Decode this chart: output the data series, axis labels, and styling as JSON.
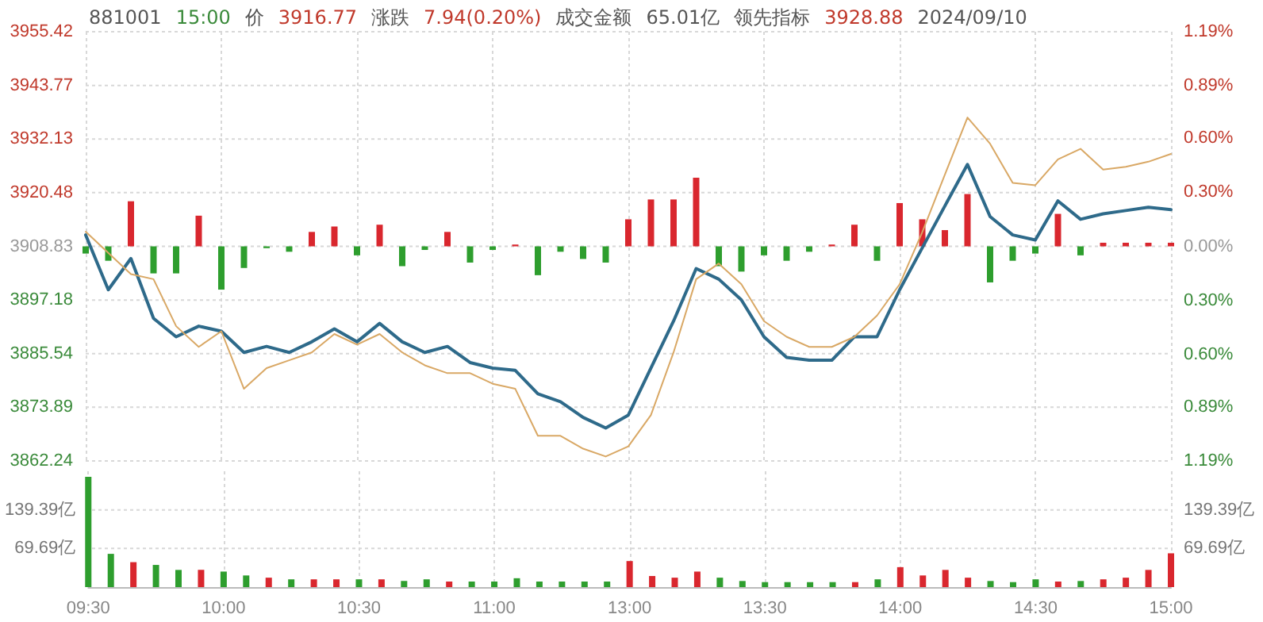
{
  "chart_data": [
    {
      "type": "line",
      "title": "881001",
      "annotations": [
        "15:00",
        "价",
        "3916.77",
        "涨跌",
        "7.94(0.20%)",
        "成交金额",
        "65.01亿",
        "领先指标",
        "3928.88",
        "2024/09/10"
      ],
      "categories": [
        null,
        null,
        null,
        null,
        null,
        null,
        null,
        null,
        null,
        null,
        null,
        null,
        null,
        null,
        null,
        null,
        null,
        null,
        null,
        null,
        null,
        null,
        null,
        null,
        null,
        null,
        null,
        null,
        null,
        null,
        null,
        null,
        null,
        null,
        null,
        null,
        null,
        null,
        null,
        null,
        null,
        null,
        null,
        null,
        null,
        null,
        null,
        null,
        null
      ],
      "series": [
        {
          "color": "#2e6a8a",
          "values": [
            3911.3,
            3899.4,
            3906.2,
            3893.2,
            3889.2,
            3891.5,
            3890.4,
            3885.8,
            3887.1,
            3885.8,
            3888.1,
            3890.9,
            3888.1,
            3892.1,
            3888.1,
            3885.8,
            3887.1,
            3883.6,
            3882.4,
            3881.9,
            3876.8,
            3875.1,
            3871.7,
            3869.4,
            3872.2,
            3882.4,
            3892.6,
            3904.0,
            3901.7,
            3897.2,
            3889.2,
            3884.7,
            3884.1,
            3884.1,
            3889.2,
            3889.2,
            3899.4,
            3908.5,
            3917.6,
            3926.6,
            3915.3,
            3911.3,
            3910.2,
            3918.7,
            3914.7,
            3915.9,
            3916.6,
            3917.3,
            3916.8
          ]
        },
        {
          "color": "#d9a865",
          "values": [
            3912.0,
            3907.4,
            3902.8,
            3901.7,
            3891.5,
            3887.0,
            3890.4,
            3877.9,
            3882.4,
            3884.1,
            3885.8,
            3889.8,
            3887.5,
            3889.8,
            3885.8,
            3883.0,
            3881.3,
            3881.3,
            3879.0,
            3877.9,
            3867.7,
            3867.7,
            3864.9,
            3863.2,
            3865.4,
            3872.2,
            3885.8,
            3901.7,
            3905.1,
            3900.6,
            3892.6,
            3889.2,
            3887.0,
            3887.0,
            3889.2,
            3893.8,
            3900.6,
            3911.9,
            3924.4,
            3936.8,
            3931.1,
            3922.6,
            3922.1,
            3927.7,
            3930.0,
            3925.5,
            3926.1,
            3927.2,
            3928.9
          ]
        },
        {
          "type": "bar",
          "axis": "y2",
          "values": [
            -0.04,
            -0.08,
            0.25,
            -0.15,
            -0.15,
            0.17,
            -0.24,
            -0.12,
            -0.01,
            -0.03,
            0.08,
            0.11,
            -0.05,
            0.12,
            -0.11,
            -0.02,
            0.08,
            -0.09,
            -0.02,
            0.01,
            -0.16,
            -0.03,
            -0.07,
            -0.09,
            0.15,
            0.26,
            0.26,
            0.38,
            -0.11,
            -0.14,
            -0.05,
            -0.08,
            -0.03,
            0.01,
            0.12,
            -0.08,
            0.24,
            0.15,
            0.09,
            0.29,
            -0.2,
            -0.08,
            -0.04,
            0.18,
            -0.05,
            0.02,
            0.02,
            0.02,
            0.02
          ],
          "colors": [
            "#2e9e2e",
            "#2e9e2e",
            "#d9272e",
            "#2e9e2e",
            "#2e9e2e",
            "#d9272e",
            "#2e9e2e",
            "#2e9e2e",
            "#2e9e2e",
            "#2e9e2e",
            "#d9272e",
            "#d9272e",
            "#2e9e2e",
            "#d9272e",
            "#2e9e2e",
            "#2e9e2e",
            "#d9272e",
            "#2e9e2e",
            "#2e9e2e",
            "#d9272e",
            "#2e9e2e",
            "#2e9e2e",
            "#2e9e2e",
            "#2e9e2e",
            "#d9272e",
            "#d9272e",
            "#d9272e",
            "#d9272e",
            "#2e9e2e",
            "#2e9e2e",
            "#2e9e2e",
            "#2e9e2e",
            "#2e9e2e",
            "#d9272e",
            "#d9272e",
            "#2e9e2e",
            "#d9272e",
            "#d9272e",
            "#d9272e",
            "#d9272e",
            "#2e9e2e",
            "#2e9e2e",
            "#2e9e2e",
            "#d9272e",
            "#2e9e2e",
            "#d9272e",
            "#d9272e",
            "#d9272e",
            "#d9272e"
          ]
        }
      ],
      "ylim": [
        3862.24,
        3955.42
      ],
      "yticks": [
        3862.24,
        3873.89,
        3885.54,
        3897.18,
        3908.83,
        3920.48,
        3932.13,
        3943.77,
        3955.42
      ],
      "y2lim": [
        -1.19,
        1.19
      ],
      "y2ticks": [
        {
          "value": -1.19,
          "label": "1.19%"
        },
        {
          "value": -0.89,
          "label": "0.89%"
        },
        {
          "value": -0.6,
          "label": "0.60%"
        },
        {
          "value": -0.3,
          "label": "0.30%"
        },
        {
          "value": 0,
          "label": "0.00%"
        },
        {
          "value": 0.3,
          "label": "0.30%"
        },
        {
          "value": 0.6,
          "label": "0.60%"
        },
        {
          "value": 0.89,
          "label": "0.89%"
        },
        {
          "value": 1.19,
          "label": "1.19%"
        }
      ],
      "grid": true,
      "marker": "none",
      "tick_labels": "y"
    },
    {
      "type": "bar",
      "categories": [
        "09:30",
        null,
        null,
        null,
        null,
        null,
        "10:00",
        null,
        null,
        null,
        null,
        null,
        "10:30",
        null,
        null,
        null,
        null,
        null,
        "11:00",
        null,
        null,
        null,
        null,
        null,
        "13:00",
        null,
        null,
        null,
        null,
        null,
        "13:30",
        null,
        null,
        null,
        null,
        null,
        "14:00",
        null,
        null,
        null,
        null,
        null,
        "14:30",
        null,
        null,
        null,
        null,
        null,
        "15:00"
      ],
      "values": [
        199,
        60,
        45,
        40,
        31,
        31,
        28,
        21,
        17,
        14,
        14,
        14,
        14,
        14,
        11,
        14,
        10,
        10,
        10,
        16,
        10,
        10,
        10,
        10,
        47,
        20,
        17,
        28,
        17,
        11,
        9,
        9,
        9,
        9,
        9,
        14,
        36,
        21,
        31,
        17,
        11,
        9,
        14,
        10,
        11,
        14,
        17,
        31,
        61
      ],
      "colors": [
        "#2e9e2e",
        "#2e9e2e",
        "#d9272e",
        "#2e9e2e",
        "#2e9e2e",
        "#d9272e",
        "#2e9e2e",
        "#2e9e2e",
        "#d9272e",
        "#2e9e2e",
        "#d9272e",
        "#d9272e",
        "#2e9e2e",
        "#d9272e",
        "#2e9e2e",
        "#2e9e2e",
        "#d9272e",
        "#2e9e2e",
        "#2e9e2e",
        "#2e9e2e",
        "#2e9e2e",
        "#2e9e2e",
        "#2e9e2e",
        "#2e9e2e",
        "#d9272e",
        "#d9272e",
        "#d9272e",
        "#d9272e",
        "#2e9e2e",
        "#2e9e2e",
        "#2e9e2e",
        "#2e9e2e",
        "#2e9e2e",
        "#2e9e2e",
        "#d9272e",
        "#2e9e2e",
        "#d9272e",
        "#d9272e",
        "#d9272e",
        "#d9272e",
        "#2e9e2e",
        "#2e9e2e",
        "#2e9e2e",
        "#d9272e",
        "#2e9e2e",
        "#d9272e",
        "#d9272e",
        "#d9272e",
        "#d9272e"
      ],
      "ylim": [
        0,
        209.07
      ],
      "yticks": [
        {
          "value": 69.69,
          "label": "69.69亿"
        },
        {
          "value": 139.39,
          "label": "139.39亿"
        }
      ],
      "y2lim": [
        0,
        209.07
      ],
      "y2ticks": [
        {
          "value": 69.69,
          "label": "69.69亿"
        },
        {
          "value": 139.39,
          "label": "139.39亿"
        }
      ],
      "grid": true
    }
  ]
}
